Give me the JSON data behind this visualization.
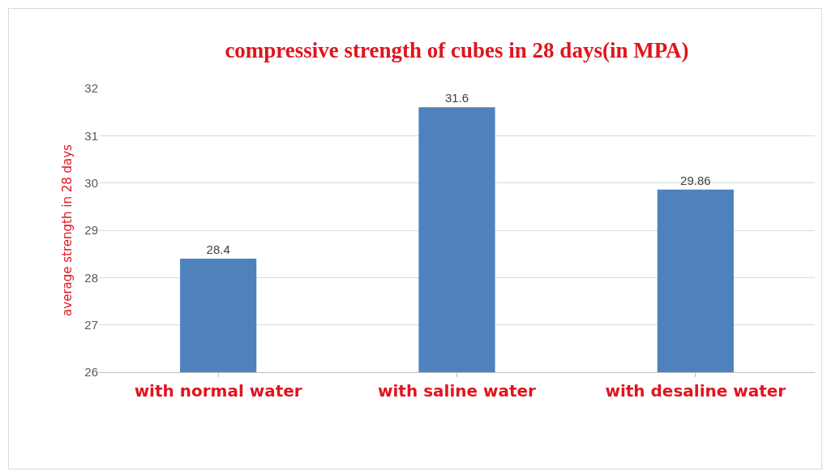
{
  "chart_data": {
    "type": "bar",
    "title": "compressive strength of cubes in 28 days(in MPA)",
    "ylabel": "average strength in 28 days",
    "categories": [
      "with normal water",
      "with saline water",
      "with desaline water"
    ],
    "values": [
      28.4,
      31.6,
      29.86
    ],
    "color": "#4f81bd",
    "ylim": [
      26,
      32
    ],
    "yticks": [
      26,
      27,
      28,
      29,
      30,
      31,
      32
    ],
    "grid": "y",
    "data_labels": true
  }
}
